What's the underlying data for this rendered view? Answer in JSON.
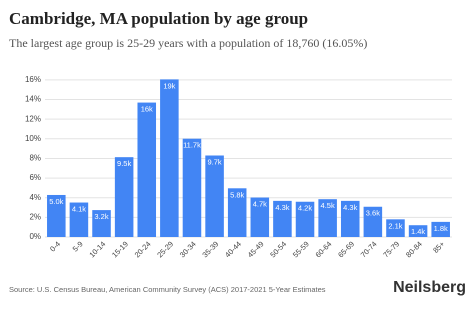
{
  "chart_data": {
    "type": "bar",
    "title": "Cambridge, MA population by age group",
    "subtitle": "The largest age group is 25-29 years with a population of 18,760 (16.05%)",
    "source": "Source: U.S. Census Bureau, American Community Survey (ACS) 2017-2021 5-Year Estimates",
    "brand": "Neilsberg",
    "categories": [
      "0-4",
      "5-9",
      "10-14",
      "15-19",
      "20-24",
      "25-29",
      "30-34",
      "35-39",
      "40-44",
      "45-49",
      "50-54",
      "55-59",
      "60-64",
      "65-69",
      "70-74",
      "75-79",
      "80-84",
      "85+"
    ],
    "values": [
      4.28,
      3.51,
      2.74,
      8.13,
      13.69,
      16.05,
      10.01,
      8.3,
      4.96,
      4.02,
      3.68,
      3.59,
      3.85,
      3.68,
      3.08,
      1.8,
      1.2,
      1.54
    ],
    "bar_labels": [
      "5.0k",
      "4.1k",
      "3.2k",
      "9.5k",
      "16k",
      "19k",
      "11.7k",
      "9.7k",
      "5.8k",
      "4.7k",
      "4.3k",
      "4.2k",
      "4.5k",
      "4.3k",
      "3.6k",
      "2.1k",
      "1.4k",
      "1.8k"
    ],
    "color": "#4285f4",
    "ylim": [
      0,
      16.6
    ],
    "yticks": [
      {
        "value": 0,
        "label": "0%"
      },
      {
        "value": 2,
        "label": "2%"
      },
      {
        "value": 4,
        "label": "4%"
      },
      {
        "value": 6,
        "label": "6%"
      },
      {
        "value": 8,
        "label": "8%"
      },
      {
        "value": 10,
        "label": "10%"
      },
      {
        "value": 12,
        "label": "12%"
      },
      {
        "value": 14,
        "label": "14%"
      },
      {
        "value": 16,
        "label": "16%"
      }
    ],
    "grid": true
  }
}
